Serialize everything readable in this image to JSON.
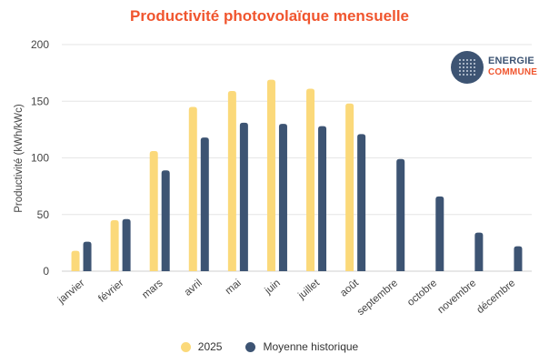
{
  "colors": {
    "title": "#f0552e",
    "series_2025": "#fbd97a",
    "series_hist": "#3d5473",
    "grid": "#e6e6e6",
    "axis_text": "#444444"
  },
  "logo": {
    "line1": "ENERGIE",
    "line2": "COMMUNE",
    "icon": "dot-grid-circle-icon"
  },
  "chart_data": {
    "type": "bar",
    "title": "Productivité photovolaïque mensuelle",
    "xlabel": "",
    "ylabel": "Productivité (kWh/kWc)",
    "ylim": [
      0,
      200
    ],
    "yticks": [
      0,
      50,
      100,
      150,
      200
    ],
    "grid": true,
    "legend_position": "bottom",
    "categories": [
      "janvier",
      "février",
      "mars",
      "avril",
      "mai",
      "juin",
      "juillet",
      "août",
      "septembre",
      "octobre",
      "novembre",
      "décembre"
    ],
    "series": [
      {
        "name": "2025",
        "color": "#fbd97a",
        "values": [
          18,
          45,
          106,
          145,
          159,
          169,
          161,
          148,
          null,
          null,
          null,
          null
        ]
      },
      {
        "name": "Moyenne historique",
        "color": "#3d5473",
        "values": [
          26,
          46,
          89,
          118,
          131,
          130,
          128,
          121,
          99,
          66,
          34,
          22
        ]
      }
    ]
  }
}
